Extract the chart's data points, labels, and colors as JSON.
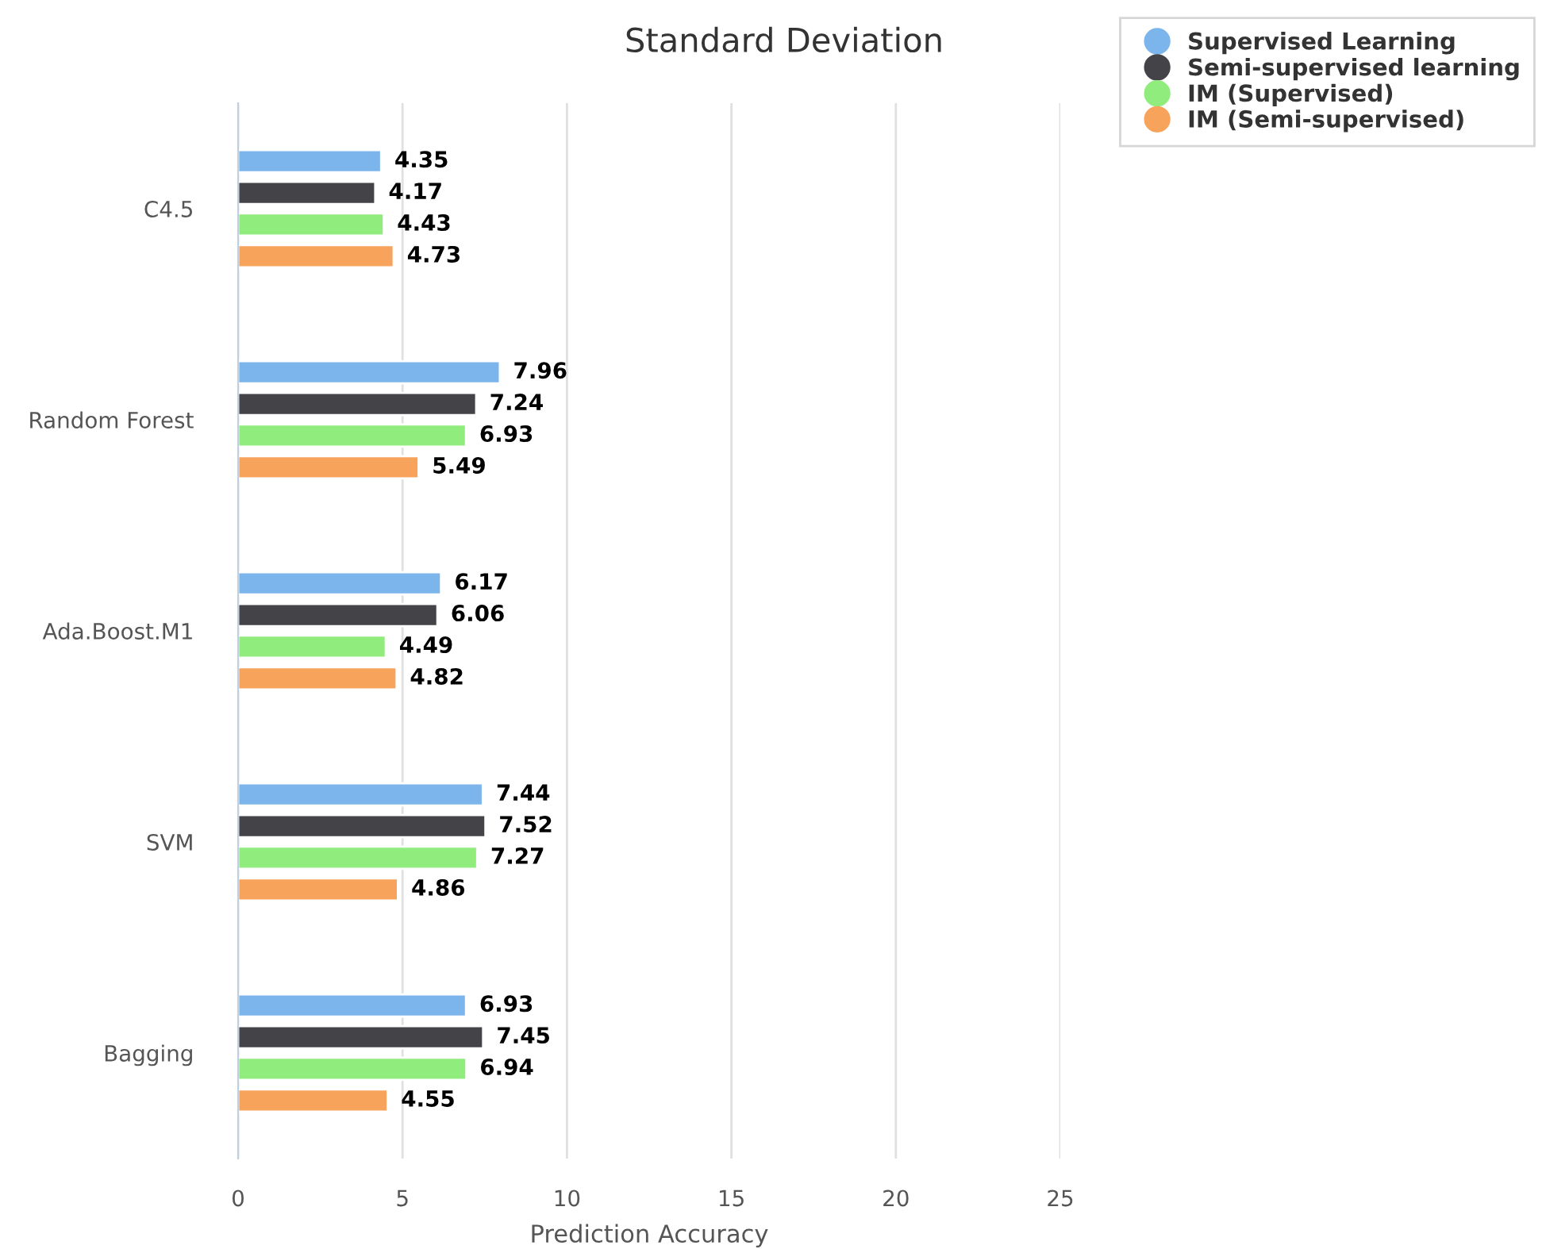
{
  "chart_data": {
    "type": "bar",
    "orientation": "horizontal",
    "title": "Standard Deviation",
    "xlabel": "Prediction Accuracy",
    "categories": [
      "C4.5",
      "Random Forest",
      "Ada.Boost.M1",
      "SVM",
      "Bagging"
    ],
    "series": [
      {
        "name": "Supervised Learning",
        "color": "#7cb5ec",
        "values": [
          4.35,
          7.96,
          6.17,
          7.44,
          6.93
        ]
      },
      {
        "name": "Semi-supervised learning",
        "color": "#434348",
        "values": [
          4.17,
          7.24,
          6.06,
          7.52,
          7.45
        ]
      },
      {
        "name": "IM (Supervised)",
        "color": "#90ed7d",
        "values": [
          4.43,
          6.93,
          4.49,
          7.27,
          6.94
        ]
      },
      {
        "name": "IM (Semi-supervised)",
        "color": "#f7a35c",
        "values": [
          4.73,
          5.49,
          4.82,
          4.86,
          4.55
        ]
      }
    ],
    "xlim": [
      0,
      25
    ],
    "xticks": [
      0,
      5,
      10,
      15,
      20,
      25
    ],
    "grid": "x",
    "legend": "top right",
    "data_labels": true
  }
}
